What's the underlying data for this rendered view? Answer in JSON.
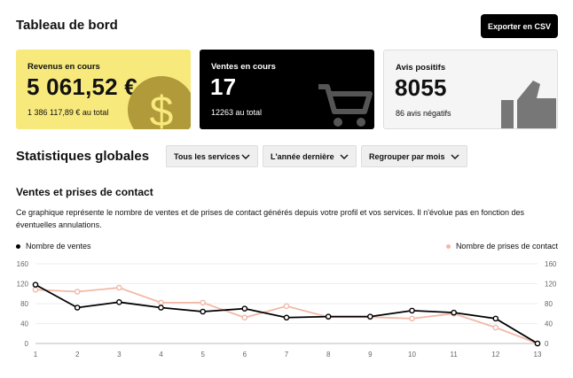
{
  "header": {
    "title": "Tableau de bord",
    "export_label": "Exporter en CSV"
  },
  "cards": {
    "revenue": {
      "title": "Revenus en cours",
      "value": "5 061,52 €",
      "sub": "1 386 117,89 € au total",
      "icon": "dollar-coin-icon"
    },
    "sales": {
      "title": "Ventes en cours",
      "value": "17",
      "sub": "12263 au total",
      "icon": "shopping-cart-icon"
    },
    "positive": {
      "title": "Avis positifs",
      "value": "8055",
      "sub": "86 avis négatifs",
      "icon": "thumbs-up-icon"
    }
  },
  "stats": {
    "title": "Statistiques globales",
    "filters": [
      "Tous les services",
      "L'année dernière",
      "Regrouper par mois"
    ]
  },
  "chart_section": {
    "title": "Ventes et prises de contact",
    "description": "Ce graphique représente le nombre de ventes et de prises de contact générés depuis votre profil et vos services. Il n'évolue pas en fonction des éventuelles annulations."
  },
  "colors": {
    "accent_yellow": "#f8e97c",
    "series_sales": "#000000",
    "series_contacts": "#f2b8a6",
    "coin": "#b09a3a"
  },
  "chart_data": {
    "type": "line",
    "x": [
      1,
      2,
      3,
      4,
      5,
      6,
      7,
      8,
      9,
      10,
      11,
      12,
      13
    ],
    "series": [
      {
        "name": "Nombre de ventes",
        "values": [
          118,
          72,
          83,
          72,
          64,
          70,
          52,
          54,
          54,
          66,
          62,
          50,
          0
        ]
      },
      {
        "name": "Nombre de prises de contact",
        "values": [
          108,
          104,
          112,
          82,
          82,
          52,
          75,
          53,
          53,
          50,
          60,
          32,
          0
        ]
      }
    ],
    "ylim": [
      0,
      160
    ],
    "yticks": [
      0,
      40,
      80,
      120,
      160
    ],
    "legend": [
      "top-left",
      "top-right"
    ],
    "grid": true
  }
}
